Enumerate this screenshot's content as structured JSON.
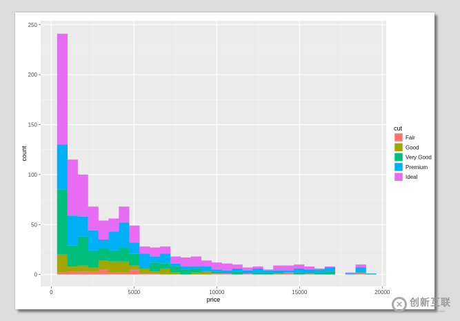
{
  "chart_data": {
    "type": "bar",
    "stacked": true,
    "xlabel": "price",
    "ylabel": "count",
    "xlim": [
      -640,
      20240
    ],
    "ylim": [
      -12,
      254
    ],
    "xticks": [
      0,
      5000,
      10000,
      15000,
      20000
    ],
    "yticks": [
      0,
      50,
      100,
      150,
      200,
      250
    ],
    "grid": true,
    "legend": {
      "title": "cut",
      "placement": "right"
    },
    "bin_width": 622,
    "x": [
      661,
      1283,
      1905,
      2527,
      3149,
      3771,
      4393,
      5015,
      5637,
      6259,
      6881,
      7503,
      8125,
      8747,
      9369,
      9991,
      10613,
      11235,
      11857,
      12479,
      13101,
      13723,
      14345,
      14967,
      15589,
      16211,
      16833,
      17455,
      18077,
      18699,
      19321
    ],
    "series": [
      {
        "name": "Fair",
        "color": "#F8766D",
        "values": [
          2,
          3,
          3,
          3,
          5,
          2,
          2,
          5,
          1,
          1,
          0,
          0,
          0,
          0,
          0,
          1,
          1,
          0,
          1,
          0,
          0,
          0,
          2,
          0,
          0,
          0,
          0,
          0,
          0,
          1,
          0
        ]
      },
      {
        "name": "Good",
        "color": "#A3A500",
        "values": [
          18,
          5,
          6,
          4,
          9,
          11,
          11,
          4,
          5,
          2,
          6,
          2,
          0,
          2,
          3,
          0,
          0,
          0,
          0,
          0,
          0,
          1,
          0,
          0,
          1,
          0,
          0,
          0,
          0,
          1,
          0
        ]
      },
      {
        "name": "Very Good",
        "color": "#00BF7D",
        "values": [
          65,
          21,
          29,
          17,
          12,
          11,
          14,
          12,
          1,
          9,
          5,
          6,
          5,
          4,
          0,
          2,
          0,
          3,
          0,
          2,
          2,
          0,
          0,
          2,
          0,
          2,
          3,
          0,
          0,
          0,
          0
        ]
      },
      {
        "name": "Premium",
        "color": "#00B0F6",
        "values": [
          45,
          30,
          20,
          20,
          9,
          19,
          25,
          11,
          14,
          6,
          10,
          3,
          3,
          2,
          5,
          2,
          3,
          3,
          3,
          4,
          2,
          3,
          2,
          4,
          4,
          3,
          4,
          0,
          1,
          5,
          1
        ]
      },
      {
        "name": "Ideal",
        "color": "#E76BF3",
        "values": [
          111,
          56,
          42,
          24,
          19,
          13,
          16,
          17,
          7,
          9,
          7,
          7,
          9,
          10,
          6,
          7,
          7,
          4,
          3,
          2,
          1,
          5,
          5,
          4,
          3,
          1,
          1,
          0,
          1,
          3,
          0
        ]
      }
    ]
  },
  "watermark": {
    "text": "创新互联",
    "subtext": "CHUANG XIN HU LIAN"
  }
}
